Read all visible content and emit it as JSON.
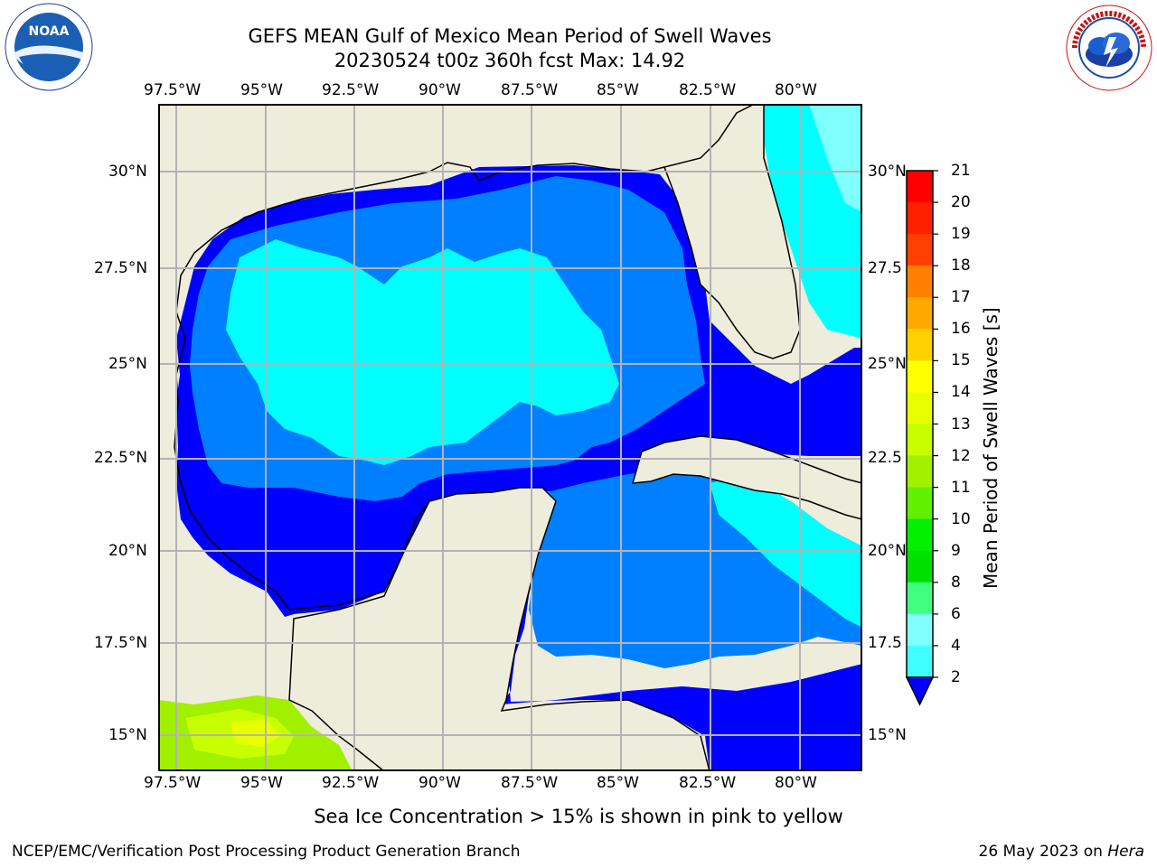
{
  "title": {
    "line1": "GEFS MEAN Gulf of Mexico Mean Period of Swell Waves",
    "line2": "20230524 t00z 360h fcst   Max: 14.92"
  },
  "map": {
    "lon_labels": [
      "97.5°W",
      "95°W",
      "92.5°W",
      "90°W",
      "87.5°W",
      "85°W",
      "82.5°W",
      "80°W"
    ],
    "lat_labels_left": [
      "30°N",
      "27.5°N",
      "25°N",
      "22.5°N",
      "20°N",
      "17.5°N",
      "15°N"
    ],
    "lat_labels_right": [
      "30°N",
      "27.5",
      "25°N",
      "22.5",
      "20°N",
      "17.5",
      "15°N"
    ],
    "land_color": "#eeecdb",
    "ocean_deep_blue": "#0000ff",
    "ocean_mid_blue": "#0080ff",
    "ocean_cyan": "#00ffff",
    "ocean_light_cyan": "#80ffff"
  },
  "colorbar": {
    "title": "Mean Period of Swell Waves [s]",
    "ticks": [
      "2",
      "4",
      "6",
      "8",
      "9",
      "10",
      "11",
      "12",
      "13",
      "14",
      "15",
      "16",
      "17",
      "18",
      "19",
      "20",
      "21"
    ],
    "colors": [
      "#0080ff",
      "#00ffff",
      "#40ffff",
      "#80ffff",
      "#40ff80",
      "#00e000",
      "#00f000",
      "#60f000",
      "#a0f000",
      "#c8ff00",
      "#e8ff00",
      "#ffff00",
      "#ffd000",
      "#ffa800",
      "#ff8000",
      "#ff4000",
      "#ff2000",
      "#ff0000"
    ]
  },
  "caption": "Sea Ice Concentration > 15% is shown in pink to yellow",
  "footer": {
    "left": "NCEP/EMC/Verification Post Processing Product Generation Branch",
    "right_date": "26 May 2023 on ",
    "right_host": "Hera"
  },
  "logos": {
    "noaa_text": "NOAA",
    "nws_text": "NATIONAL WEATHER SERVICE"
  }
}
